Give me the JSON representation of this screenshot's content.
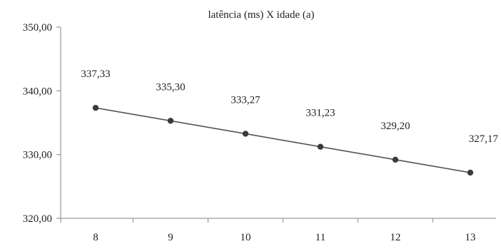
{
  "chart_data": {
    "type": "line",
    "title": "latência (ms) X idade (a)",
    "xlabel": "",
    "ylabel": "",
    "categories": [
      "8",
      "9",
      "10",
      "11",
      "12",
      "13"
    ],
    "series": [
      {
        "values": [
          337.33,
          335.3,
          333.27,
          331.23,
          329.2,
          327.17
        ],
        "data_labels": [
          "337,33",
          "335,30",
          "333,27",
          "331,23",
          "329,20",
          "327,17"
        ],
        "color": "#555555",
        "marker": "circle"
      }
    ],
    "ylim": [
      320,
      350
    ],
    "yticks": [
      320,
      330,
      340,
      350
    ],
    "ytick_labels": [
      "320,00",
      "330,00",
      "340,00",
      "350,00"
    ],
    "grid": false,
    "legend": "none"
  }
}
